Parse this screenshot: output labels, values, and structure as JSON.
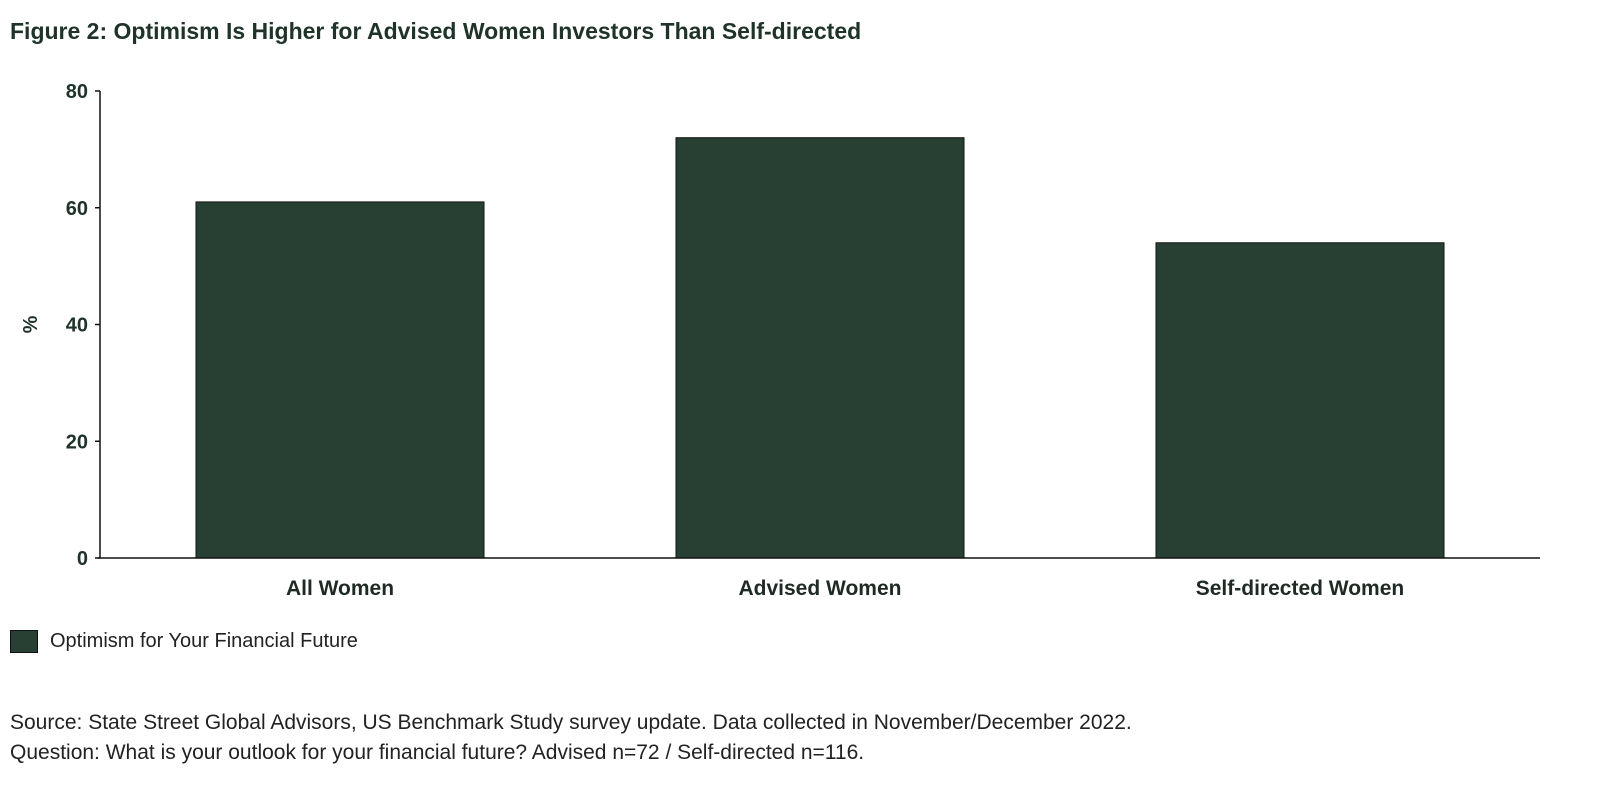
{
  "chart_data": {
    "type": "bar",
    "title": "Figure 2: Optimism Is Higher for Advised Women Investors Than Self-directed",
    "categories": [
      "All Women",
      "Advised Women",
      "Self-directed Women"
    ],
    "series": [
      {
        "name": "Optimism for Your Financial Future",
        "values": [
          61,
          72,
          54
        ]
      }
    ],
    "ylabel": "%",
    "xlabel": "",
    "ylim": [
      0,
      80
    ],
    "yticks": [
      0,
      20,
      40,
      60,
      80
    ],
    "grid": false,
    "legend": "bottom-left",
    "bar_color": "#283f33"
  },
  "source": {
    "line1": "Source: State Street Global Advisors, US Benchmark Study survey update. Data collected in November/December 2022.",
    "line2": "Question: What is your outlook for your financial future?  Advised n=72 / Self-directed n=116."
  }
}
